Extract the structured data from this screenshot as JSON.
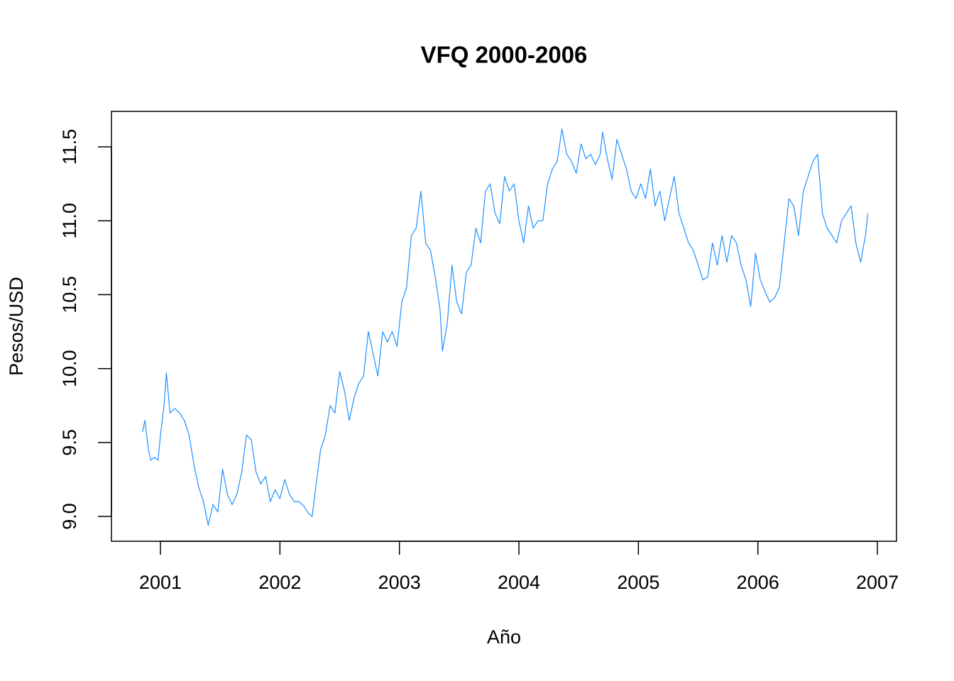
{
  "chart_data": {
    "type": "line",
    "title": "VFQ 2000-2006",
    "x_label": "Año",
    "y_label": "Pesos/USD",
    "color": "#1e90ff",
    "xlim": [
      2000.59,
      2007.16
    ],
    "ylim": [
      8.832,
      11.74
    ],
    "xticks": [
      2001,
      2002,
      2003,
      2004,
      2005,
      2006,
      2007
    ],
    "yticks": [
      {
        "value": 9,
        "label": "9.0"
      },
      9.5,
      {
        "value": 10,
        "label": "10.0"
      },
      10.5,
      {
        "value": 11,
        "label": "11.0"
      },
      11.5
    ],
    "x": [
      2000.85,
      2000.87,
      2000.9,
      2000.92,
      2000.95,
      2000.98,
      2001.0,
      2001.03,
      2001.05,
      2001.08,
      2001.12,
      2001.16,
      2001.2,
      2001.24,
      2001.28,
      2001.32,
      2001.36,
      2001.4,
      2001.44,
      2001.48,
      2001.52,
      2001.56,
      2001.6,
      2001.64,
      2001.68,
      2001.72,
      2001.76,
      2001.8,
      2001.84,
      2001.88,
      2001.92,
      2001.96,
      2002.0,
      2002.04,
      2002.08,
      2002.12,
      2002.16,
      2002.2,
      2002.24,
      2002.27,
      2002.3,
      2002.34,
      2002.38,
      2002.42,
      2002.46,
      2002.5,
      2002.54,
      2002.58,
      2002.62,
      2002.66,
      2002.7,
      2002.74,
      2002.78,
      2002.82,
      2002.86,
      2002.9,
      2002.94,
      2002.98,
      2003.02,
      2003.06,
      2003.1,
      2003.14,
      2003.18,
      2003.22,
      2003.26,
      2003.3,
      2003.34,
      2003.36,
      2003.4,
      2003.44,
      2003.48,
      2003.52,
      2003.56,
      2003.6,
      2003.64,
      2003.68,
      2003.72,
      2003.76,
      2003.8,
      2003.84,
      2003.88,
      2003.92,
      2003.96,
      2004.0,
      2004.04,
      2004.08,
      2004.12,
      2004.16,
      2004.2,
      2004.24,
      2004.28,
      2004.32,
      2004.36,
      2004.4,
      2004.44,
      2004.48,
      2004.52,
      2004.56,
      2004.6,
      2004.64,
      2004.68,
      2004.7,
      2004.74,
      2004.78,
      2004.82,
      2004.86,
      2004.9,
      2004.94,
      2004.98,
      2005.02,
      2005.06,
      2005.1,
      2005.14,
      2005.18,
      2005.22,
      2005.26,
      2005.3,
      2005.34,
      2005.38,
      2005.42,
      2005.46,
      2005.5,
      2005.54,
      2005.58,
      2005.62,
      2005.66,
      2005.7,
      2005.74,
      2005.78,
      2005.82,
      2005.86,
      2005.9,
      2005.94,
      2005.98,
      2006.02,
      2006.06,
      2006.1,
      2006.14,
      2006.18,
      2006.22,
      2006.26,
      2006.3,
      2006.34,
      2006.38,
      2006.42,
      2006.46,
      2006.5,
      2006.54,
      2006.58,
      2006.62,
      2006.66,
      2006.7,
      2006.74,
      2006.78,
      2006.82,
      2006.86,
      2006.9,
      2006.92
    ],
    "values": [
      9.57,
      9.65,
      9.45,
      9.38,
      9.4,
      9.38,
      9.55,
      9.75,
      9.97,
      9.7,
      9.73,
      9.7,
      9.65,
      9.55,
      9.35,
      9.2,
      9.1,
      8.94,
      9.08,
      9.03,
      9.32,
      9.15,
      9.08,
      9.15,
      9.3,
      9.55,
      9.52,
      9.3,
      9.22,
      9.27,
      9.1,
      9.18,
      9.12,
      9.25,
      9.15,
      9.1,
      9.1,
      9.07,
      9.02,
      9.0,
      9.2,
      9.45,
      9.55,
      9.75,
      9.7,
      9.98,
      9.85,
      9.65,
      9.8,
      9.9,
      9.95,
      10.25,
      10.1,
      9.95,
      10.25,
      10.18,
      10.25,
      10.15,
      10.45,
      10.55,
      10.9,
      10.95,
      11.2,
      10.85,
      10.8,
      10.62,
      10.4,
      10.12,
      10.3,
      10.7,
      10.45,
      10.37,
      10.65,
      10.7,
      10.95,
      10.85,
      11.2,
      11.25,
      11.05,
      10.98,
      11.3,
      11.2,
      11.25,
      11.0,
      10.85,
      11.1,
      10.95,
      11.0,
      11.0,
      11.25,
      11.35,
      11.4,
      11.62,
      11.45,
      11.4,
      11.32,
      11.52,
      11.42,
      11.45,
      11.38,
      11.45,
      11.6,
      11.42,
      11.28,
      11.55,
      11.45,
      11.35,
      11.2,
      11.15,
      11.25,
      11.15,
      11.35,
      11.1,
      11.2,
      11.0,
      11.15,
      11.3,
      11.05,
      10.95,
      10.85,
      10.8,
      10.7,
      10.6,
      10.62,
      10.85,
      10.7,
      10.9,
      10.72,
      10.9,
      10.85,
      10.7,
      10.6,
      10.42,
      10.78,
      10.6,
      10.52,
      10.45,
      10.48,
      10.55,
      10.85,
      11.15,
      11.1,
      10.9,
      11.2,
      11.3,
      11.4,
      11.45,
      11.05,
      10.95,
      10.9,
      10.85,
      11.0,
      11.05,
      11.1,
      10.85,
      10.72,
      10.9,
      11.05
    ]
  }
}
